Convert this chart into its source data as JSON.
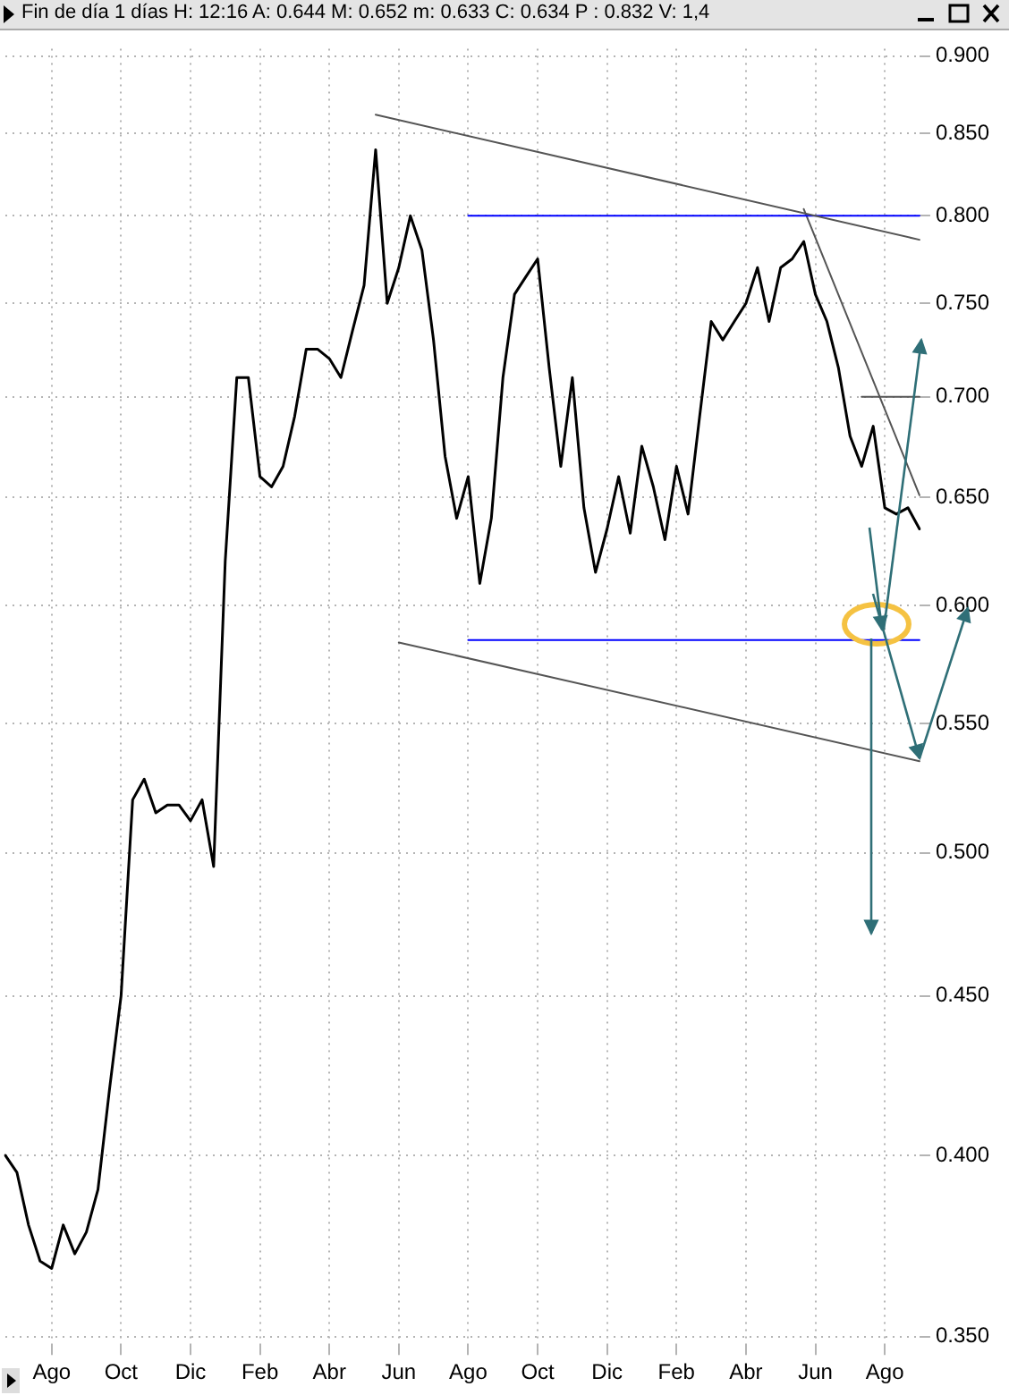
{
  "chart_data": {
    "type": "line",
    "title": "Fin de día 1 días H: 12:16 A: 0.644 M: 0.652 m: 0.633 C: 0.634 P : 0.832 V: 1,4",
    "categories": [
      null,
      null,
      null,
      null,
      "Ago",
      null,
      null,
      null,
      null,
      null,
      "Oct",
      null,
      null,
      null,
      null,
      null,
      "Dic",
      null,
      null,
      null,
      null,
      null,
      "Feb",
      null,
      null,
      null,
      null,
      null,
      "Abr",
      null,
      null,
      null,
      null,
      null,
      "Jun",
      null,
      null,
      null,
      null,
      null,
      "Ago",
      null,
      null,
      null,
      null,
      null,
      "Oct",
      null,
      null,
      null,
      null,
      null,
      "Dic",
      null,
      null,
      null,
      null,
      null,
      "Feb",
      null,
      null,
      null,
      null,
      null,
      "Abr",
      null,
      null,
      null,
      null,
      null,
      "Jun",
      null,
      null,
      null,
      null,
      null,
      "Ago",
      null,
      null,
      null
    ],
    "series": [
      {
        "color": "#000000",
        "values": [
          0.4,
          0.395,
          0.38,
          0.37,
          0.368,
          0.38,
          0.372,
          0.378,
          0.39,
          0.42,
          0.45,
          0.52,
          0.528,
          0.515,
          0.518,
          0.518,
          0.512,
          0.52,
          0.495,
          0.62,
          0.71,
          0.71,
          0.66,
          0.655,
          0.665,
          0.69,
          0.725,
          0.725,
          0.72,
          0.71,
          0.735,
          0.76,
          0.84,
          0.75,
          0.77,
          0.8,
          0.78,
          0.73,
          0.67,
          0.64,
          0.66,
          0.61,
          0.64,
          0.71,
          0.755,
          0.765,
          0.775,
          0.715,
          0.665,
          0.71,
          0.645,
          0.615,
          0.635,
          0.66,
          0.633,
          0.675,
          0.655,
          0.63,
          0.665,
          0.642,
          0.69,
          0.74,
          0.73,
          0.74,
          0.75,
          0.77,
          0.74,
          0.77,
          0.775,
          0.785,
          0.755,
          0.74,
          0.715,
          0.68,
          0.665,
          0.685,
          0.645,
          0.642,
          0.645,
          0.635
        ]
      },
      {
        "color": "#555555",
        "values": [
          null,
          null,
          null,
          null,
          null,
          null,
          null,
          null,
          null,
          null,
          null,
          null,
          null,
          null,
          null,
          null,
          null,
          null,
          null,
          null,
          null,
          null,
          null,
          null,
          null,
          null,
          null,
          null,
          null,
          null,
          null,
          null,
          0.862,
          null,
          null,
          null,
          null,
          null,
          null,
          null,
          null,
          null,
          null,
          null,
          null,
          null,
          null,
          null,
          null,
          null,
          null,
          null,
          null,
          null,
          null,
          null,
          null,
          null,
          null,
          null,
          null,
          null,
          null,
          null,
          null,
          null,
          null,
          null,
          null,
          null,
          null,
          null,
          null,
          null,
          null,
          null,
          null,
          null,
          null,
          0.786
        ]
      },
      {
        "color": "#555555",
        "values": [
          null,
          null,
          null,
          null,
          null,
          null,
          null,
          null,
          null,
          null,
          null,
          null,
          null,
          null,
          null,
          null,
          null,
          null,
          null,
          null,
          null,
          null,
          null,
          null,
          null,
          null,
          null,
          null,
          null,
          null,
          null,
          null,
          null,
          null,
          0.584,
          null,
          null,
          null,
          null,
          null,
          null,
          null,
          null,
          null,
          null,
          null,
          null,
          null,
          null,
          null,
          null,
          null,
          null,
          null,
          null,
          null,
          null,
          null,
          null,
          null,
          null,
          null,
          null,
          null,
          null,
          null,
          null,
          null,
          null,
          null,
          null,
          null,
          null,
          null,
          null,
          null,
          null,
          null,
          null,
          0.535
        ]
      },
      {
        "color": "#0000ff",
        "values": [
          null,
          null,
          null,
          null,
          null,
          null,
          null,
          null,
          null,
          null,
          null,
          null,
          null,
          null,
          null,
          null,
          null,
          null,
          null,
          null,
          null,
          null,
          null,
          null,
          null,
          null,
          null,
          null,
          null,
          null,
          null,
          null,
          null,
          null,
          null,
          null,
          null,
          null,
          null,
          null,
          0.8,
          null,
          null,
          null,
          null,
          null,
          null,
          null,
          null,
          null,
          null,
          null,
          null,
          null,
          null,
          null,
          null,
          null,
          null,
          null,
          null,
          null,
          null,
          null,
          null,
          null,
          null,
          null,
          null,
          null,
          null,
          null,
          null,
          null,
          null,
          null,
          null,
          null,
          null,
          0.8
        ]
      },
      {
        "color": "#0000ff",
        "values": [
          null,
          null,
          null,
          null,
          null,
          null,
          null,
          null,
          null,
          null,
          null,
          null,
          null,
          null,
          null,
          null,
          null,
          null,
          null,
          null,
          null,
          null,
          null,
          null,
          null,
          null,
          null,
          null,
          null,
          null,
          null,
          null,
          null,
          null,
          null,
          null,
          null,
          null,
          null,
          null,
          0.585,
          null,
          null,
          null,
          null,
          null,
          null,
          null,
          null,
          null,
          null,
          null,
          null,
          null,
          null,
          null,
          null,
          null,
          null,
          null,
          null,
          null,
          null,
          null,
          null,
          null,
          null,
          null,
          null,
          null,
          null,
          null,
          null,
          null,
          null,
          null,
          null,
          null,
          null,
          0.585
        ]
      },
      {
        "color": "#555555",
        "values": [
          null,
          null,
          null,
          null,
          null,
          null,
          null,
          null,
          null,
          null,
          null,
          null,
          null,
          null,
          null,
          null,
          null,
          null,
          null,
          null,
          null,
          null,
          null,
          null,
          null,
          null,
          null,
          null,
          null,
          null,
          null,
          null,
          null,
          null,
          null,
          null,
          null,
          null,
          null,
          null,
          null,
          null,
          null,
          null,
          null,
          null,
          null,
          null,
          null,
          null,
          null,
          null,
          null,
          null,
          null,
          null,
          null,
          null,
          null,
          null,
          null,
          null,
          null,
          null,
          null,
          null,
          null,
          null,
          null,
          null,
          null,
          null,
          null,
          null,
          0.7,
          null,
          null,
          null,
          null,
          0.7
        ]
      },
      {
        "color": "#555555",
        "values": [
          null,
          null,
          null,
          null,
          null,
          null,
          null,
          null,
          null,
          null,
          null,
          null,
          null,
          null,
          null,
          null,
          null,
          null,
          null,
          null,
          null,
          null,
          null,
          null,
          null,
          null,
          null,
          null,
          null,
          null,
          null,
          null,
          null,
          null,
          null,
          null,
          null,
          null,
          null,
          null,
          null,
          null,
          null,
          null,
          null,
          null,
          null,
          null,
          null,
          null,
          null,
          null,
          null,
          null,
          null,
          null,
          null,
          null,
          null,
          null,
          null,
          null,
          null,
          null,
          null,
          null,
          null,
          null,
          null,
          0.804,
          null,
          null,
          null,
          null,
          null,
          null,
          null,
          null,
          null,
          0.651
        ]
      }
    ],
    "ylim": [
      0.348,
      0.905
    ],
    "yticks": [
      {
        "value": 0.35,
        "label": "0.350"
      },
      {
        "value": 0.4,
        "label": "0.400"
      },
      {
        "value": 0.45,
        "label": "0.450"
      },
      {
        "value": 0.5,
        "label": "0.500"
      },
      {
        "value": 0.55,
        "label": "0.550"
      },
      {
        "value": 0.6,
        "label": "0.600"
      },
      {
        "value": 0.65,
        "label": "0.650"
      },
      {
        "value": 0.7,
        "label": "0.700"
      },
      {
        "value": 0.75,
        "label": "0.750"
      },
      {
        "value": 0.8,
        "label": "0.800"
      },
      {
        "value": 0.85,
        "label": "0.850"
      },
      {
        "value": 0.9,
        "label": "0.900"
      }
    ],
    "log": true,
    "grid": true,
    "legend": false,
    "marker": "none"
  }
}
